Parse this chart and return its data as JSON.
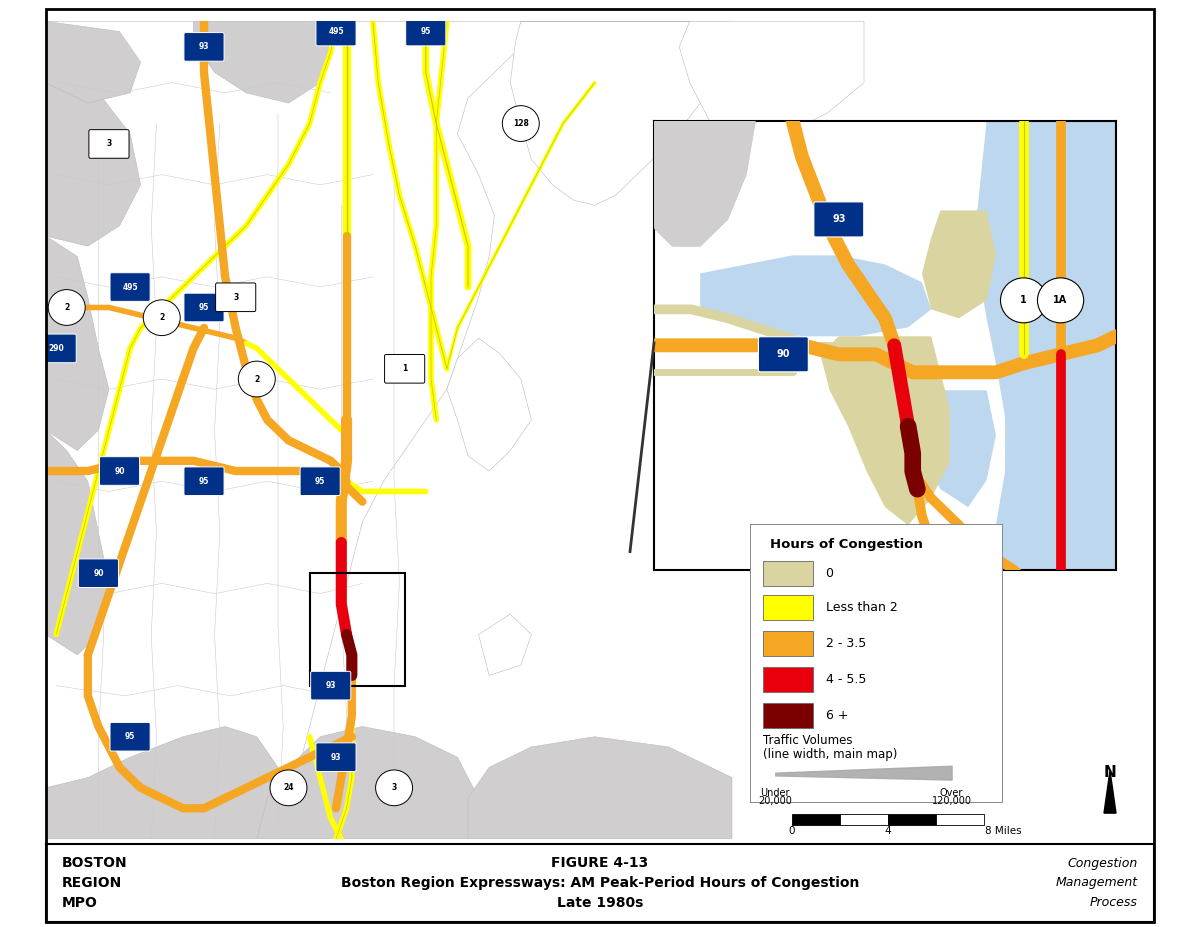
{
  "title_left": "BOSTON\nREGION\nMPO",
  "title_center_line1": "FIGURE 4-13",
  "title_center_line2": "Boston Region Expressways: AM Peak-Period Hours of Congestion",
  "title_center_line3": "Late 1980s",
  "title_right": "Congestion\nManagement\nProcess",
  "background_color": "#FFFFFF",
  "map_bg_color": "#BDD7EE",
  "land_color": "#FFFFFF",
  "suburb_color": "#D0CECE",
  "border_color": "#555555",
  "legend_title": "Hours of Congestion",
  "legend_items": [
    {
      "label": "0",
      "color": "#D9D4A0"
    },
    {
      "label": "Less than 2",
      "color": "#FFFF00"
    },
    {
      "label": "2 - 3.5",
      "color": "#F5A623"
    },
    {
      "label": "4 - 5.5",
      "color": "#E8000D"
    },
    {
      "label": "6 +",
      "color": "#7B0000"
    }
  ],
  "congestion_colors": {
    "zero": "#D9D4A0",
    "lt2": "#FFFF00",
    "lt2_outline": "#C8C800",
    "2to35": "#F5A623",
    "4to55": "#E8000D",
    "6plus": "#7B0000"
  },
  "footer_bg": "#FFFFFF",
  "footer_border": "#000000"
}
